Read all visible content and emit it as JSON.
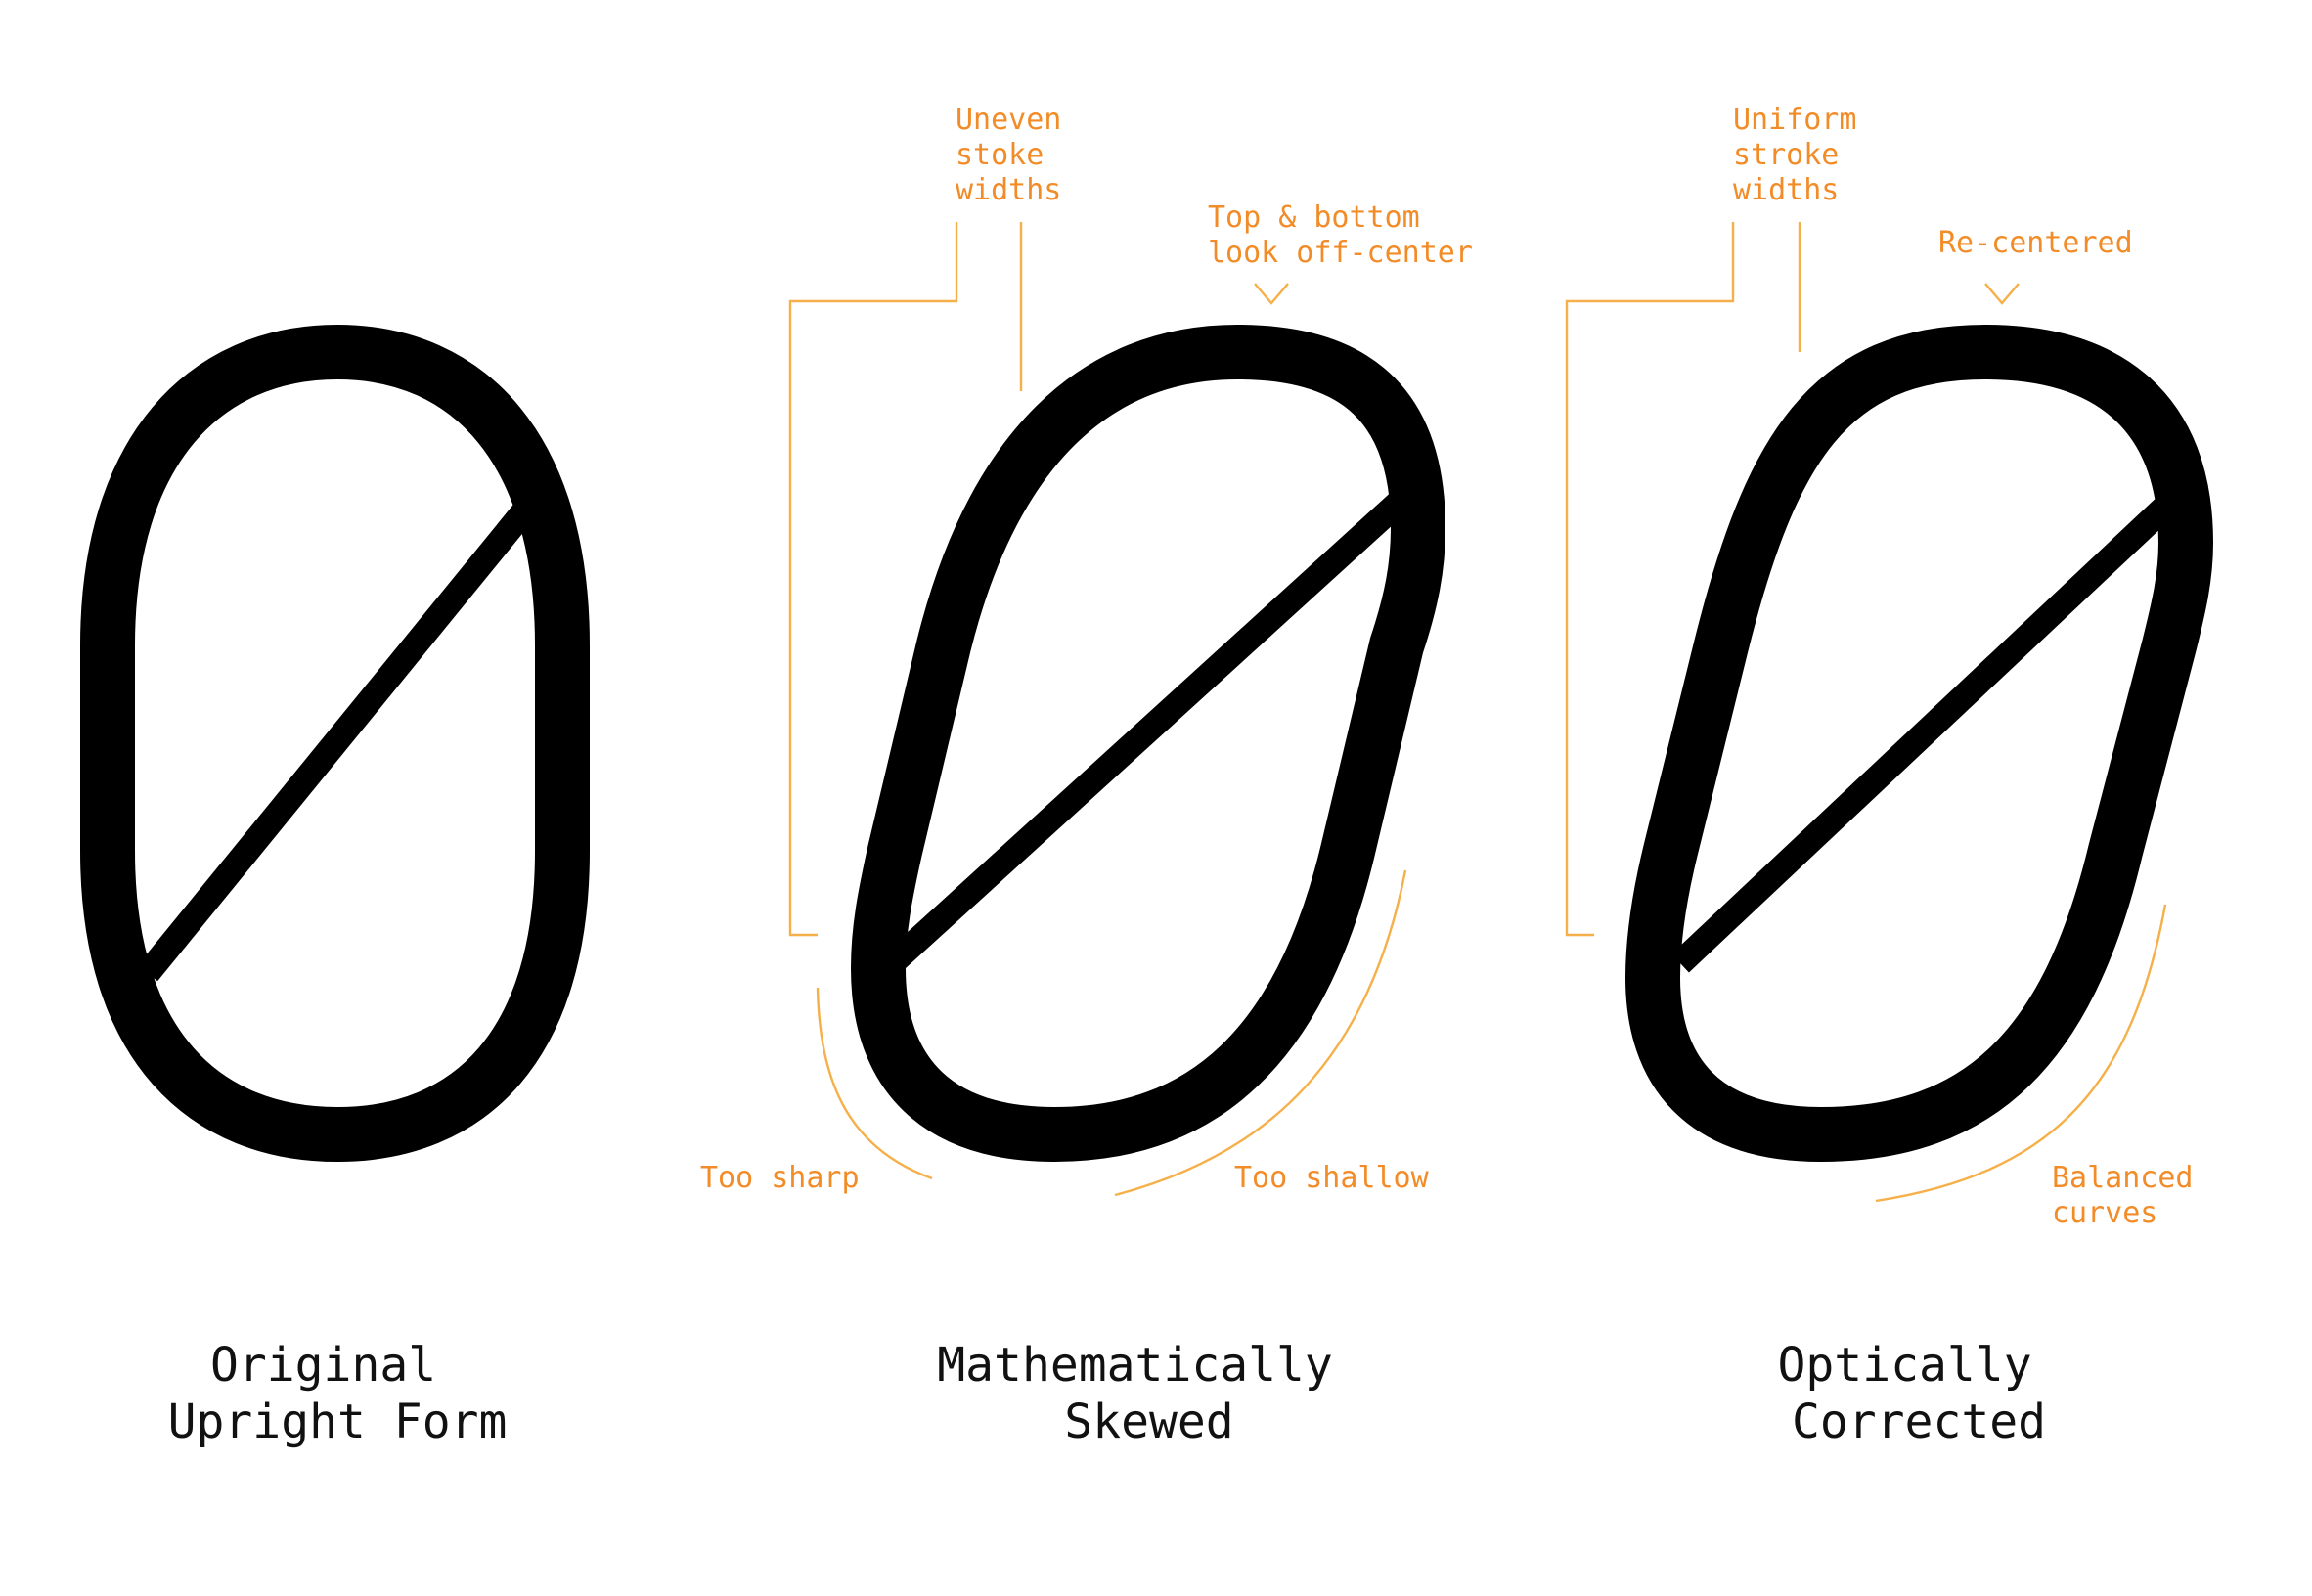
{
  "colors": {
    "background": "#ffffff",
    "glyph": "#000000",
    "annotation": "#f28c28",
    "leader_line": "#f6b04a",
    "caption": "#111111"
  },
  "panels": [
    {
      "id": "original",
      "caption": [
        "Original",
        "Upright Form"
      ],
      "annotations": []
    },
    {
      "id": "skewed",
      "caption": [
        "Mathematically",
        "Skewed"
      ],
      "annotations": [
        {
          "id": "uneven",
          "lines": [
            "Uneven",
            "stoke",
            "widths"
          ]
        },
        {
          "id": "offcenter",
          "lines": [
            "Top & bottom",
            "look off-center"
          ]
        },
        {
          "id": "too-sharp",
          "lines": [
            "Too sharp"
          ]
        },
        {
          "id": "too-shallow",
          "lines": [
            "Too shallow"
          ]
        }
      ]
    },
    {
      "id": "corrected",
      "caption": [
        "Optically",
        "Corrected"
      ],
      "annotations": [
        {
          "id": "uniform",
          "lines": [
            "Uniform",
            "stroke",
            "widths"
          ]
        },
        {
          "id": "recentered",
          "lines": [
            "Re-centered"
          ]
        },
        {
          "id": "balanced",
          "lines": [
            "Balanced",
            "curves"
          ]
        }
      ]
    }
  ]
}
